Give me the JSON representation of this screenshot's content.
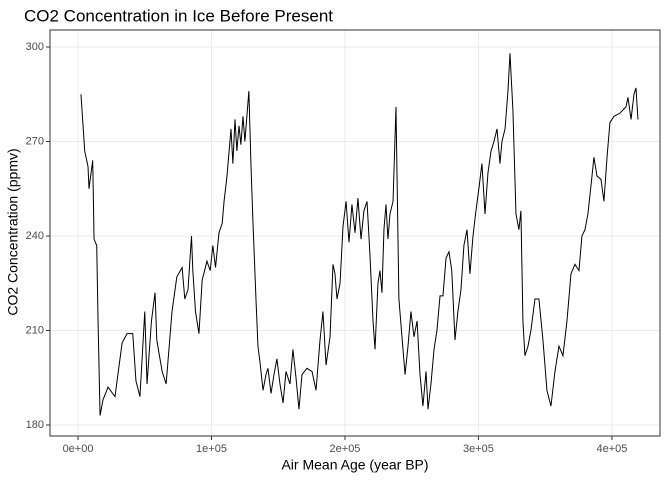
{
  "chart_data": {
    "type": "line",
    "title": "CO2 Concentration in Ice Before Present",
    "x_label": "Air Mean Age (year BP)",
    "y_label": "CO2 Concentration (ppmv)",
    "color": "#000000",
    "grid": true,
    "xlim": [
      -21000,
      436000
    ],
    "ylim": [
      176.5,
      305.4
    ],
    "xticks": [
      {
        "value": 0,
        "label": "0e+00"
      },
      {
        "value": 100000,
        "label": "1e+05"
      },
      {
        "value": 200000,
        "label": "2e+05"
      },
      {
        "value": 300000,
        "label": "3e+05"
      },
      {
        "value": 400000,
        "label": "4e+05"
      }
    ],
    "yticks": [
      180,
      210,
      240,
      270,
      300
    ],
    "x": [
      2200,
      5000,
      7500,
      8200,
      11000,
      12000,
      14000,
      15000,
      16500,
      18700,
      22500,
      27700,
      33000,
      36700,
      41000,
      43400,
      46400,
      50000,
      51700,
      55000,
      57700,
      59000,
      63000,
      66000,
      70400,
      74000,
      78000,
      80000,
      82400,
      85000,
      86000,
      88000,
      90600,
      93000,
      96600,
      99000,
      101000,
      103000,
      105600,
      108000,
      109400,
      111600,
      113000,
      114600,
      116000,
      117600,
      119000,
      120600,
      122000,
      123600,
      125000,
      128000,
      129600,
      131000,
      133300,
      134800,
      136300,
      138600,
      140800,
      142300,
      144600,
      146800,
      149000,
      151300,
      153600,
      155800,
      158800,
      161000,
      163300,
      165500,
      167800,
      171500,
      175300,
      178300,
      181300,
      183500,
      185800,
      188800,
      191000,
      192500,
      194000,
      196300,
      198500,
      200800,
      203000,
      205200,
      207500,
      209700,
      212000,
      214200,
      216500,
      218700,
      221000,
      222500,
      224700,
      226200,
      227700,
      229200,
      230700,
      232200,
      233700,
      236000,
      238200,
      240400,
      242700,
      245000,
      247200,
      249400,
      251700,
      254000,
      256200,
      258400,
      260700,
      262200,
      264400,
      266700,
      268900,
      271200,
      273400,
      275700,
      277900,
      280000,
      282400,
      284600,
      286900,
      289100,
      291400,
      293600,
      295900,
      298100,
      300300,
      302600,
      304900,
      307100,
      309400,
      311600,
      313900,
      316100,
      317600,
      319900,
      322100,
      323600,
      325800,
      328100,
      330300,
      331800,
      333300,
      334800,
      337100,
      339300,
      342300,
      345300,
      348300,
      351300,
      354300,
      357300,
      360300,
      363300,
      366300,
      369300,
      372300,
      375300,
      377500,
      379800,
      382000,
      384300,
      386500,
      388800,
      391800,
      394000,
      396300,
      398500,
      401500,
      406000,
      410500,
      412000,
      414300,
      416500,
      418000,
      419500
    ],
    "values": [
      285,
      267,
      262,
      255,
      264,
      239,
      237,
      213,
      183,
      188,
      192,
      189,
      206,
      209,
      209,
      194,
      189,
      216,
      193,
      213,
      222,
      207,
      197,
      193,
      216,
      227,
      230,
      220,
      223,
      240,
      229,
      216,
      209,
      226,
      232,
      229,
      237,
      230,
      241,
      244,
      251,
      259,
      266,
      274,
      263,
      277,
      267,
      275,
      269,
      278,
      270,
      286,
      262,
      245,
      220,
      205,
      200,
      191,
      196,
      198,
      190,
      196,
      201,
      193,
      187,
      197,
      193,
      204,
      195,
      185,
      196,
      198,
      197,
      191,
      207,
      216,
      199,
      208,
      231,
      228,
      220,
      225,
      243,
      251,
      238,
      250,
      241,
      252,
      239,
      248,
      251,
      234,
      213,
      204,
      225,
      229,
      222,
      242,
      250,
      239,
      247,
      251,
      281,
      220,
      208,
      196,
      205,
      216,
      208,
      213,
      196,
      186,
      197,
      185,
      193,
      204,
      210,
      221,
      221,
      233,
      235,
      229,
      207,
      216,
      223,
      237,
      242,
      228,
      240,
      248,
      255,
      263,
      247,
      260,
      267,
      270,
      274,
      263,
      270,
      274,
      286,
      298,
      280,
      247,
      242,
      248,
      213,
      202,
      205,
      210,
      220,
      220,
      207,
      191,
      186,
      197,
      205,
      202,
      213,
      228,
      231,
      229,
      240,
      242,
      247,
      256,
      265,
      259,
      258,
      251,
      265,
      276,
      278,
      279,
      281,
      284,
      277,
      285,
      287,
      277
    ]
  }
}
